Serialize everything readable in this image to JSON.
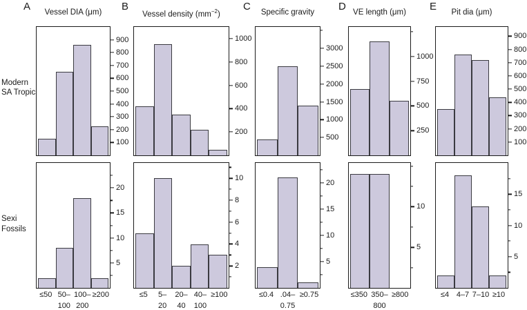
{
  "figure": {
    "letters": [
      "A",
      "B",
      "C",
      "D",
      "E"
    ],
    "rows": [
      {
        "name": "Modern SA Tropics",
        "label_line1": "Modern",
        "label_line2": "SA Tropics"
      },
      {
        "name": "Sexi Fossils",
        "label_line1": "Sexi",
        "label_line2": "Fossils"
      }
    ],
    "colors": {
      "bar_fill": "#cdc9dd",
      "bar_border": "#3a3a40",
      "axis": "#1a1a1a",
      "background": "#ffffff"
    }
  },
  "chart_data": [
    {
      "id": "A-top",
      "type": "bar",
      "column": "A",
      "row": "top",
      "row_name": "Modern SA Tropics",
      "title": "Vessel DIA (μm)",
      "categories": [
        "≤50",
        "50–100",
        "100–200",
        "≥200"
      ],
      "values": [
        130,
        650,
        860,
        225
      ],
      "ylim": [
        0,
        1000
      ],
      "yticks_major": [
        100,
        200,
        300,
        400,
        500,
        600,
        700,
        800,
        900
      ],
      "yticks_minor": []
    },
    {
      "id": "B-top",
      "type": "bar",
      "column": "B",
      "row": "top",
      "row_name": "Modern SA Tropics",
      "title": "Vessel density (mm−2)",
      "title_parts": {
        "pre": "Vessel density (mm",
        "sup": "−2",
        "post": ")"
      },
      "categories": [
        "≤5",
        "5–20",
        "20–40",
        "40–100",
        "≥100"
      ],
      "values": [
        420,
        950,
        350,
        220,
        50
      ],
      "ylim": [
        0,
        1100
      ],
      "yticks_major": [
        200,
        400,
        600,
        800,
        1000
      ],
      "yticks_minor": []
    },
    {
      "id": "C-top",
      "type": "bar",
      "column": "C",
      "row": "top",
      "row_name": "Modern SA Tropics",
      "title": "Specific gravity",
      "categories": [
        "≤0.4",
        ".04–0.75",
        "≥0.75"
      ],
      "values": [
        450,
        2500,
        1400
      ],
      "ylim": [
        0,
        3600
      ],
      "yticks_major": [
        500,
        1000,
        1500,
        2000,
        2500,
        3000
      ],
      "yticks_minor": [
        3500
      ]
    },
    {
      "id": "D-top",
      "type": "bar",
      "column": "D",
      "row": "top",
      "row_name": "Modern SA Tropics",
      "title": "VE length (μm)",
      "categories": [
        "≤350",
        "350–800",
        "≥800"
      ],
      "values": [
        670,
        1150,
        550
      ],
      "ylim": [
        0,
        1300
      ],
      "yticks_major": [
        250,
        500,
        750,
        1000
      ],
      "yticks_minor": [
        1250
      ]
    },
    {
      "id": "E-top",
      "type": "bar",
      "column": "E",
      "row": "top",
      "row_name": "Modern SA Tropics",
      "title": "Pit dia (μm)",
      "categories": [
        "≤4",
        "4–7",
        "7–10",
        "≥10"
      ],
      "values": [
        350,
        760,
        720,
        440
      ],
      "ylim": [
        0,
        970
      ],
      "yticks_major": [
        100,
        200,
        300,
        400,
        500,
        600,
        700,
        800,
        900
      ],
      "yticks_minor": []
    },
    {
      "id": "A-bottom",
      "type": "bar",
      "column": "A",
      "row": "bottom",
      "row_name": "Sexi Fossils",
      "title": "",
      "categories": [
        "≤50",
        "50–100",
        "100–200",
        "≥200"
      ],
      "values": [
        2,
        8,
        18,
        2
      ],
      "ylim": [
        0,
        25
      ],
      "yticks_major": [
        5,
        10,
        15,
        20
      ],
      "yticks_minor": [
        2.5,
        7.5,
        12.5,
        17.5,
        22.5
      ],
      "xticks_line1": [
        "≤50",
        "50–",
        "100–",
        "≥200"
      ],
      "xticks_line2": [
        "",
        "100",
        "200",
        ""
      ]
    },
    {
      "id": "B-bottom",
      "type": "bar",
      "column": "B",
      "row": "bottom",
      "row_name": "Sexi Fossils",
      "title": "",
      "categories": [
        "≤5",
        "5–20",
        "20–40",
        "40–100",
        "≥100"
      ],
      "values": [
        5,
        10,
        2,
        4,
        3
      ],
      "ylim": [
        0,
        11.4
      ],
      "yticks_major": [
        2,
        4,
        6,
        8,
        10
      ],
      "yticks_minor": [
        1,
        3,
        5,
        7,
        9,
        11
      ],
      "xticks_line1": [
        "≤5",
        "5–",
        "20–",
        "40–",
        "≥100"
      ],
      "xticks_line2": [
        "",
        "20",
        "40",
        "100",
        ""
      ]
    },
    {
      "id": "C-bottom",
      "type": "bar",
      "column": "C",
      "row": "bottom",
      "row_name": "Sexi Fossils",
      "title": "",
      "categories": [
        "≤0.4",
        ".04–0.75",
        "≥0.75"
      ],
      "values": [
        4,
        21,
        1
      ],
      "ylim": [
        0,
        23.8
      ],
      "yticks_major": [
        5,
        10,
        15,
        20
      ],
      "yticks_minor": [
        2.5,
        7.5,
        12.5,
        17.5,
        22.5
      ],
      "xticks_line1": [
        "≤0.4",
        ".04–",
        "≥0.75"
      ],
      "xticks_line2": [
        "",
        "0.75",
        ""
      ]
    },
    {
      "id": "D-bottom",
      "type": "bar",
      "column": "D",
      "row": "bottom",
      "row_name": "Sexi Fossils",
      "title": "",
      "categories": [
        "≤350",
        "350–800",
        "≥800"
      ],
      "values": [
        14,
        14,
        0
      ],
      "ylim": [
        0,
        15.4
      ],
      "yticks_major": [
        5,
        10
      ],
      "yticks_minor": [
        2.5,
        7.5,
        12.5,
        15
      ],
      "xticks_line1": [
        "≤350",
        "350–",
        "≥800"
      ],
      "xticks_line2": [
        "",
        "800",
        ""
      ]
    },
    {
      "id": "E-bottom",
      "type": "bar",
      "column": "E",
      "row": "bottom",
      "row_name": "Sexi Fossils",
      "title": "",
      "categories": [
        "≤4",
        "4–7",
        "7–10",
        "≥10"
      ],
      "values": [
        2,
        18,
        13,
        2
      ],
      "ylim": [
        0,
        20
      ],
      "yticks_major": [
        5,
        10,
        15
      ],
      "yticks_minor": [
        2.5,
        7.5,
        12.5,
        17.5
      ],
      "xticks_line1": [
        "≤4",
        "4–7",
        "7–10",
        "≥10"
      ],
      "xticks_line2": [
        "",
        "",
        "",
        ""
      ]
    }
  ]
}
